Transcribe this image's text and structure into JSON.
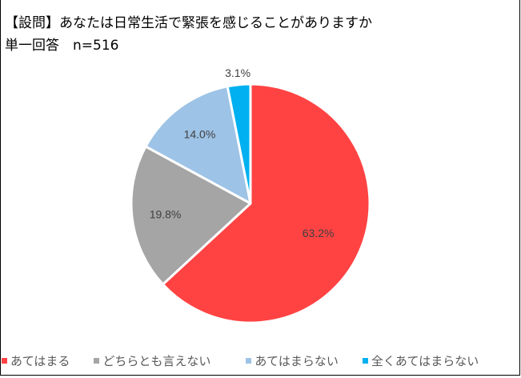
{
  "title": "【設問】あなたは日常生活で緊張を感じることがありますか",
  "subtitle": "単一回答　n=516",
  "chart_data": {
    "type": "pie",
    "title": "【設問】あなたは日常生活で緊張を感じることがありますか",
    "subtitle": "単一回答　n=516",
    "categories": [
      "あてはまる",
      "どちらとも言えない",
      "あてはまらない",
      "全くあてはまらない"
    ],
    "values": [
      63.2,
      19.8,
      14.0,
      3.1
    ],
    "labels": [
      "63.2%",
      "19.8%",
      "14.0%",
      "3.1%"
    ],
    "colors": [
      "#FF4343",
      "#A5A5A5",
      "#9DC3E6",
      "#00B0F0"
    ],
    "legend_position": "bottom",
    "start_angle": "12 o'clock, clockwise"
  },
  "legend": [
    {
      "label": "あてはまる",
      "color": "#FF4343"
    },
    {
      "label": "どちらとも言えない",
      "color": "#A5A5A5"
    },
    {
      "label": "あてはまらない",
      "color": "#9DC3E6"
    },
    {
      "label": "全くあてはまらない",
      "color": "#00B0F0"
    }
  ]
}
